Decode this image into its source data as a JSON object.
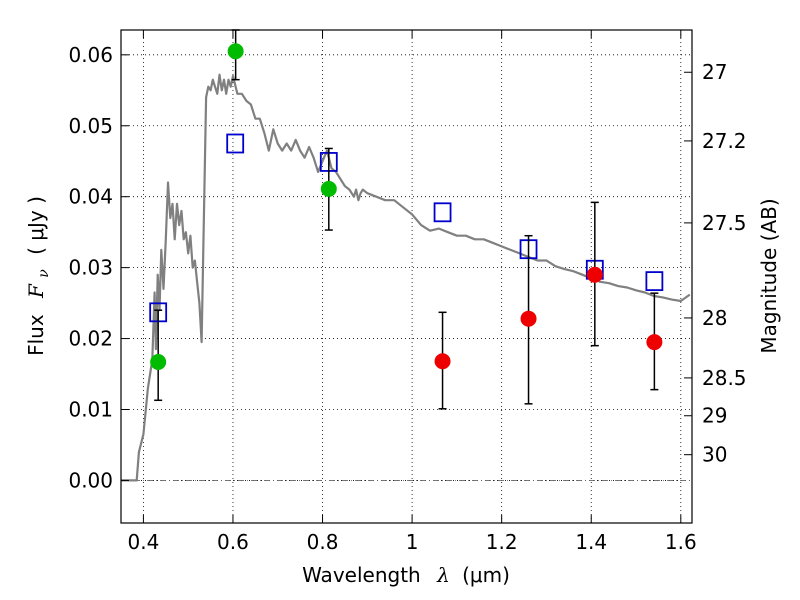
{
  "chart_data": {
    "type": "scatter",
    "xlabel": {
      "text": "Wavelength",
      "symbol": "λ",
      "unit": "(μm)"
    },
    "ylabel": {
      "text": "Flux",
      "symbol": "F",
      "subscript": "ν",
      "unit": "( μJy )"
    },
    "y2label": "Magnitude (AB)",
    "xlim": [
      0.35,
      1.625
    ],
    "ylim": [
      -0.006,
      0.0635
    ],
    "grid": true,
    "x_ticks": [
      {
        "value": 0.4,
        "label": "0.4"
      },
      {
        "value": 0.6,
        "label": "0.6"
      },
      {
        "value": 0.8,
        "label": "0.8"
      },
      {
        "value": 1.0,
        "label": "1"
      },
      {
        "value": 1.2,
        "label": "1.2"
      },
      {
        "value": 1.4,
        "label": "1.4"
      },
      {
        "value": 1.6,
        "label": "1.6"
      }
    ],
    "y_ticks": [
      {
        "value": 0.0,
        "label": "0.00"
      },
      {
        "value": 0.01,
        "label": "0.01"
      },
      {
        "value": 0.02,
        "label": "0.02"
      },
      {
        "value": 0.03,
        "label": "0.03"
      },
      {
        "value": 0.04,
        "label": "0.04"
      },
      {
        "value": 0.05,
        "label": "0.05"
      },
      {
        "value": 0.06,
        "label": "0.06"
      }
    ],
    "y2_ticks": [
      {
        "magnitude": 27,
        "label": "27"
      },
      {
        "magnitude": 27.2,
        "label": "27.2"
      },
      {
        "magnitude": 27.5,
        "label": "27.5"
      },
      {
        "magnitude": 28,
        "label": "28"
      },
      {
        "magnitude": 28.5,
        "label": "28.5"
      },
      {
        "magnitude": 29,
        "label": "29"
      },
      {
        "magnitude": 30,
        "label": "30"
      }
    ],
    "series": [
      {
        "kind": "line",
        "color": "#808080",
        "points": [
          [
            0.35,
            0.0
          ],
          [
            0.385,
            0.0
          ],
          [
            0.39,
            0.004
          ],
          [
            0.4,
            0.0065
          ],
          [
            0.41,
            0.013
          ],
          [
            0.42,
            0.017
          ],
          [
            0.425,
            0.0265
          ],
          [
            0.428,
            0.0185
          ],
          [
            0.432,
            0.029
          ],
          [
            0.436,
            0.024
          ],
          [
            0.44,
            0.0325
          ],
          [
            0.445,
            0.027
          ],
          [
            0.45,
            0.034
          ],
          [
            0.455,
            0.042
          ],
          [
            0.46,
            0.037
          ],
          [
            0.465,
            0.039
          ],
          [
            0.47,
            0.034
          ],
          [
            0.475,
            0.039
          ],
          [
            0.48,
            0.036
          ],
          [
            0.485,
            0.038
          ],
          [
            0.49,
            0.034
          ],
          [
            0.495,
            0.035
          ],
          [
            0.5,
            0.032
          ],
          [
            0.505,
            0.0345
          ],
          [
            0.51,
            0.03
          ],
          [
            0.515,
            0.031
          ],
          [
            0.52,
            0.028
          ],
          [
            0.525,
            0.025
          ],
          [
            0.53,
            0.0195
          ],
          [
            0.54,
            0.054
          ],
          [
            0.545,
            0.0555
          ],
          [
            0.55,
            0.055
          ],
          [
            0.555,
            0.0565
          ],
          [
            0.56,
            0.0555
          ],
          [
            0.565,
            0.0545
          ],
          [
            0.57,
            0.0572
          ],
          [
            0.575,
            0.055
          ],
          [
            0.58,
            0.0565
          ],
          [
            0.585,
            0.0545
          ],
          [
            0.59,
            0.0565
          ],
          [
            0.595,
            0.0555
          ],
          [
            0.6,
            0.057
          ],
          [
            0.61,
            0.0545
          ],
          [
            0.62,
            0.0545
          ],
          [
            0.63,
            0.0535
          ],
          [
            0.64,
            0.053
          ],
          [
            0.65,
            0.051
          ],
          [
            0.66,
            0.051
          ],
          [
            0.67,
            0.049
          ],
          [
            0.68,
            0.0465
          ],
          [
            0.69,
            0.0495
          ],
          [
            0.7,
            0.0475
          ],
          [
            0.71,
            0.0465
          ],
          [
            0.72,
            0.0475
          ],
          [
            0.73,
            0.0465
          ],
          [
            0.74,
            0.048
          ],
          [
            0.75,
            0.0465
          ],
          [
            0.76,
            0.0455
          ],
          [
            0.77,
            0.047
          ],
          [
            0.78,
            0.0455
          ],
          [
            0.79,
            0.0435
          ],
          [
            0.8,
            0.045
          ],
          [
            0.81,
            0.0465
          ],
          [
            0.82,
            0.044
          ],
          [
            0.83,
            0.0435
          ],
          [
            0.84,
            0.0425
          ],
          [
            0.85,
            0.0415
          ],
          [
            0.86,
            0.041
          ],
          [
            0.87,
            0.04
          ],
          [
            0.875,
            0.041
          ],
          [
            0.88,
            0.0395
          ],
          [
            0.885,
            0.0405
          ],
          [
            0.89,
            0.041
          ],
          [
            0.9,
            0.0405
          ],
          [
            0.92,
            0.04
          ],
          [
            0.94,
            0.0395
          ],
          [
            0.96,
            0.0395
          ],
          [
            0.98,
            0.0385
          ],
          [
            1.0,
            0.0375
          ],
          [
            1.02,
            0.036
          ],
          [
            1.04,
            0.0352
          ],
          [
            1.06,
            0.0355
          ],
          [
            1.08,
            0.035
          ],
          [
            1.1,
            0.0345
          ],
          [
            1.12,
            0.0345
          ],
          [
            1.14,
            0.034
          ],
          [
            1.16,
            0.034
          ],
          [
            1.18,
            0.0335
          ],
          [
            1.2,
            0.033
          ],
          [
            1.22,
            0.0325
          ],
          [
            1.24,
            0.032
          ],
          [
            1.26,
            0.0315
          ],
          [
            1.28,
            0.031
          ],
          [
            1.3,
            0.031
          ],
          [
            1.32,
            0.0302
          ],
          [
            1.34,
            0.0298
          ],
          [
            1.36,
            0.0295
          ],
          [
            1.38,
            0.029
          ],
          [
            1.4,
            0.0285
          ],
          [
            1.42,
            0.028
          ],
          [
            1.44,
            0.0278
          ],
          [
            1.46,
            0.0274
          ],
          [
            1.48,
            0.0272
          ],
          [
            1.5,
            0.0268
          ],
          [
            1.52,
            0.0265
          ],
          [
            1.54,
            0.026
          ],
          [
            1.56,
            0.0258
          ],
          [
            1.58,
            0.0255
          ],
          [
            1.6,
            0.0253
          ],
          [
            1.62,
            0.0262
          ]
        ]
      },
      {
        "kind": "open-square",
        "color": "#0000cc",
        "points": [
          {
            "x": 0.433,
            "y": 0.0237
          },
          {
            "x": 0.605,
            "y": 0.0475
          },
          {
            "x": 0.814,
            "y": 0.0449
          },
          {
            "x": 1.068,
            "y": 0.0378
          },
          {
            "x": 1.26,
            "y": 0.0326
          },
          {
            "x": 1.408,
            "y": 0.0297
          },
          {
            "x": 1.541,
            "y": 0.0281
          }
        ]
      },
      {
        "kind": "filled-circle-errorbar",
        "color": "#00bb00",
        "points": [
          {
            "x": 0.433,
            "y": 0.0167,
            "lo": 0.0113,
            "hi": 0.024
          },
          {
            "x": 0.606,
            "y": 0.0605,
            "lo": 0.0565,
            "hi": 0.0635
          },
          {
            "x": 0.814,
            "y": 0.0411,
            "lo": 0.0353,
            "hi": 0.0468
          }
        ]
      },
      {
        "kind": "filled-circle-errorbar",
        "color": "#ee0000",
        "points": [
          {
            "x": 1.068,
            "y": 0.0168,
            "lo": 0.0101,
            "hi": 0.0237
          },
          {
            "x": 1.26,
            "y": 0.0228,
            "lo": 0.0108,
            "hi": 0.0345
          },
          {
            "x": 1.408,
            "y": 0.029,
            "lo": 0.019,
            "hi": 0.0392
          },
          {
            "x": 1.541,
            "y": 0.0195,
            "lo": 0.0128,
            "hi": 0.0264
          }
        ]
      }
    ],
    "zero_line": {
      "y": 0.0,
      "color": "#666666"
    }
  }
}
